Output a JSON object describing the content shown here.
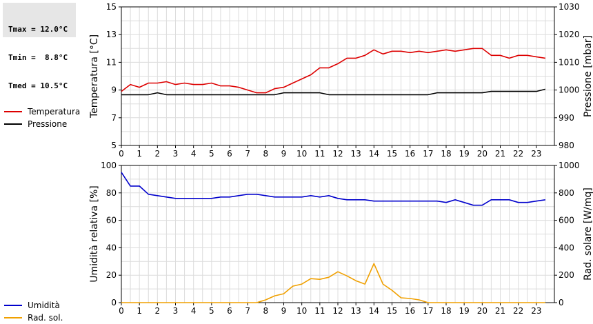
{
  "stats": {
    "lines": [
      "Tmax = 12.0°C",
      "Tmin =  8.8°C",
      "Tmed = 10.5°C"
    ]
  },
  "chart_data": [
    {
      "type": "line",
      "x": [
        0,
        0.5,
        1,
        1.5,
        2,
        2.5,
        3,
        3.5,
        4,
        4.5,
        5,
        5.5,
        6,
        6.5,
        7,
        7.5,
        8,
        8.5,
        9,
        9.5,
        10,
        10.5,
        11,
        11.5,
        12,
        12.5,
        13,
        13.5,
        14,
        14.5,
        15,
        15.5,
        16,
        16.5,
        17,
        17.5,
        18,
        18.5,
        19,
        19.5,
        20,
        20.5,
        21,
        21.5,
        22,
        22.5,
        23,
        23.5
      ],
      "xlim": [
        0,
        24
      ],
      "xticks": [
        "0",
        "1",
        "2",
        "3",
        "4",
        "5",
        "6",
        "7",
        "8",
        "9",
        "10",
        "11",
        "12",
        "13",
        "14",
        "15",
        "16",
        "17",
        "18",
        "19",
        "20",
        "21",
        "22",
        "23"
      ],
      "ylabel_left": "Temperatura [°C]",
      "ylabel_right": "Pressione [mbar]",
      "ylim_left": [
        5,
        15
      ],
      "yticks_left": [
        "5",
        "7",
        "9",
        "11",
        "13",
        "15"
      ],
      "ylim_right": [
        980,
        1030
      ],
      "yticks_right": [
        "980",
        "990",
        "1000",
        "1010",
        "1020",
        "1030"
      ],
      "grid": true,
      "legend_position": "left",
      "series": [
        {
          "name": "Temperatura",
          "axis": "left",
          "color": "#dd0000",
          "values": [
            8.9,
            9.4,
            9.2,
            9.5,
            9.5,
            9.6,
            9.4,
            9.5,
            9.4,
            9.4,
            9.5,
            9.3,
            9.3,
            9.2,
            9.0,
            8.8,
            8.8,
            9.1,
            9.2,
            9.5,
            9.8,
            10.1,
            10.6,
            10.6,
            10.9,
            11.3,
            11.3,
            11.5,
            11.9,
            11.6,
            11.8,
            11.8,
            11.7,
            11.8,
            11.7,
            11.8,
            11.9,
            11.8,
            11.9,
            12.0,
            12.0,
            11.5,
            11.5,
            11.3,
            11.5,
            11.5,
            11.4,
            11.3
          ]
        },
        {
          "name": "Pressione",
          "axis": "right",
          "color": "#000000",
          "values": [
            998.3,
            998.3,
            998.3,
            998.3,
            999.0,
            998.3,
            998.3,
            998.3,
            998.3,
            998.3,
            998.3,
            998.3,
            998.3,
            998.3,
            998.3,
            998.3,
            998.3,
            998.3,
            999.0,
            999.0,
            999.0,
            999.0,
            999.0,
            998.3,
            998.3,
            998.3,
            998.3,
            998.3,
            998.3,
            998.3,
            998.3,
            998.3,
            998.3,
            998.3,
            998.3,
            999.0,
            999.0,
            999.0,
            999.0,
            999.0,
            999.0,
            999.5,
            999.5,
            999.5,
            999.5,
            999.5,
            999.5,
            1000.3
          ]
        }
      ]
    },
    {
      "type": "line",
      "x": [
        0,
        0.5,
        1,
        1.5,
        2,
        2.5,
        3,
        3.5,
        4,
        4.5,
        5,
        5.5,
        6,
        6.5,
        7,
        7.5,
        8,
        8.5,
        9,
        9.5,
        10,
        10.5,
        11,
        11.5,
        12,
        12.5,
        13,
        13.5,
        14,
        14.5,
        15,
        15.5,
        16,
        16.5,
        17,
        17.5,
        18,
        18.5,
        19,
        19.5,
        20,
        20.5,
        21,
        21.5,
        22,
        22.5,
        23,
        23.5
      ],
      "xlim": [
        0,
        24
      ],
      "xticks": [
        "0",
        "1",
        "2",
        "3",
        "4",
        "5",
        "6",
        "7",
        "8",
        "9",
        "10",
        "11",
        "12",
        "13",
        "14",
        "15",
        "16",
        "17",
        "18",
        "19",
        "20",
        "21",
        "22",
        "23"
      ],
      "ylabel_left": "Umidità relativa [%]",
      "ylabel_right": "Rad. solare [W/mq]",
      "ylim_left": [
        0,
        100
      ],
      "yticks_left": [
        "0",
        "20",
        "40",
        "60",
        "80",
        "100"
      ],
      "ylim_right": [
        0,
        1000
      ],
      "yticks_right": [
        "0",
        "200",
        "400",
        "600",
        "800",
        "1000"
      ],
      "grid": true,
      "legend_position": "left",
      "series": [
        {
          "name": "Umidità",
          "axis": "left",
          "color": "#0000cc",
          "values": [
            95,
            85,
            85,
            79,
            78,
            77,
            76,
            76,
            76,
            76,
            76,
            77,
            77,
            78,
            79,
            79,
            78,
            77,
            77,
            77,
            77,
            78,
            77,
            78,
            76,
            75,
            75,
            75,
            74,
            74,
            74,
            74,
            74,
            74,
            74,
            74,
            73,
            75,
            73,
            71,
            71,
            75,
            75,
            75,
            73,
            73,
            74,
            75
          ]
        },
        {
          "name": "Rad. sol.",
          "axis": "right",
          "color": "#f0a000",
          "values": [
            0,
            0,
            0,
            0,
            0,
            0,
            0,
            0,
            0,
            0,
            0,
            0,
            0,
            0,
            0,
            0,
            20,
            50,
            65,
            120,
            135,
            175,
            170,
            185,
            225,
            195,
            160,
            135,
            285,
            135,
            90,
            35,
            30,
            20,
            0,
            0,
            0,
            0,
            0,
            0,
            0,
            0,
            0,
            0,
            0,
            0,
            0,
            0
          ]
        }
      ]
    }
  ]
}
